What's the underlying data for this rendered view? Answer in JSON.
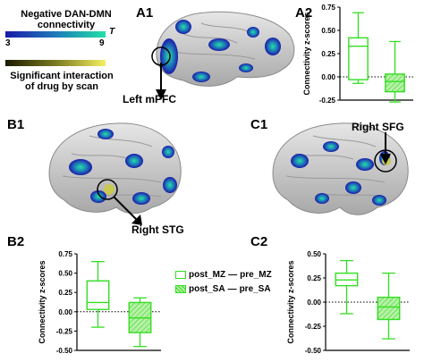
{
  "legend": {
    "dan_dmn_title_line1": "Negative DAN-DMN",
    "dan_dmn_title_line2": "connectivity",
    "colorbar_min": "3",
    "colorbar_max": "9",
    "colorbar_stat": "T",
    "interaction_title_line1": "Significant interaction",
    "interaction_title_line2": "of drug by scan",
    "colors": {
      "connectivity_start": "#1a1aa8",
      "connectivity_end": "#22e0a8",
      "interaction_start": "#1a1a00",
      "interaction_end": "#f4f060"
    }
  },
  "panels": {
    "a1": "A1",
    "a2": "A2",
    "b1": "B1",
    "b2": "B2",
    "c1": "C1",
    "c2": "C2"
  },
  "annotations": {
    "left_mpfc": "Left mPFC",
    "right_stg": "Right STG",
    "right_sfg": "Right SFG"
  },
  "boxplot_legend": {
    "post_mz": "post_MZ",
    "pre_mz": "pre_MZ",
    "post_sa": "post_SA",
    "pre_sa": "pre_SA",
    "separator": "—"
  },
  "chart_data": [
    {
      "id": "A2",
      "type": "boxplot",
      "ylabel": "Connectivity z-scores",
      "ylim": [
        -0.25,
        0.75
      ],
      "yticks": [
        "-0.25",
        "0.00",
        "0.25",
        "0.50",
        "0.75"
      ],
      "yticks_values": [
        -0.25,
        0.0,
        0.25,
        0.5,
        0.75
      ],
      "series": [
        {
          "name": "post_MZ — pre_MZ",
          "min": -0.07,
          "q1": -0.03,
          "median": 0.33,
          "q3": 0.42,
          "max": 0.69,
          "fill": "none"
        },
        {
          "name": "post_SA — pre_SA",
          "min": -0.27,
          "q1": -0.16,
          "median": -0.05,
          "q3": 0.03,
          "max": 0.38,
          "fill": "hatched"
        }
      ]
    },
    {
      "id": "B2",
      "type": "boxplot",
      "ylabel": "Connectivity z-scores",
      "ylim": [
        -0.5,
        0.75
      ],
      "yticks": [
        "-0.50",
        "-0.25",
        "0.00",
        "0.25",
        "0.50",
        "0.75"
      ],
      "yticks_values": [
        -0.5,
        -0.25,
        0.0,
        0.25,
        0.5,
        0.75
      ],
      "series": [
        {
          "name": "post_MZ — pre_MZ",
          "min": -0.2,
          "q1": 0.03,
          "median": 0.12,
          "q3": 0.4,
          "max": 0.65,
          "fill": "none"
        },
        {
          "name": "post_SA — pre_SA",
          "min": -0.45,
          "q1": -0.27,
          "median": -0.08,
          "q3": 0.12,
          "max": 0.18,
          "fill": "hatched"
        }
      ]
    },
    {
      "id": "C2",
      "type": "boxplot",
      "ylabel": "Connectivity z-scores",
      "ylim": [
        -0.5,
        0.5
      ],
      "yticks": [
        "-0.50",
        "-0.25",
        "0.00",
        "0.25",
        "0.50"
      ],
      "yticks_values": [
        -0.5,
        -0.25,
        0.0,
        0.25,
        0.5
      ],
      "series": [
        {
          "name": "post_MZ — pre_MZ",
          "min": -0.12,
          "q1": 0.17,
          "median": 0.23,
          "q3": 0.3,
          "max": 0.43,
          "fill": "none"
        },
        {
          "name": "post_SA — pre_SA",
          "min": -0.38,
          "q1": -0.18,
          "median": -0.05,
          "q3": 0.05,
          "max": 0.3,
          "fill": "hatched"
        }
      ]
    }
  ]
}
